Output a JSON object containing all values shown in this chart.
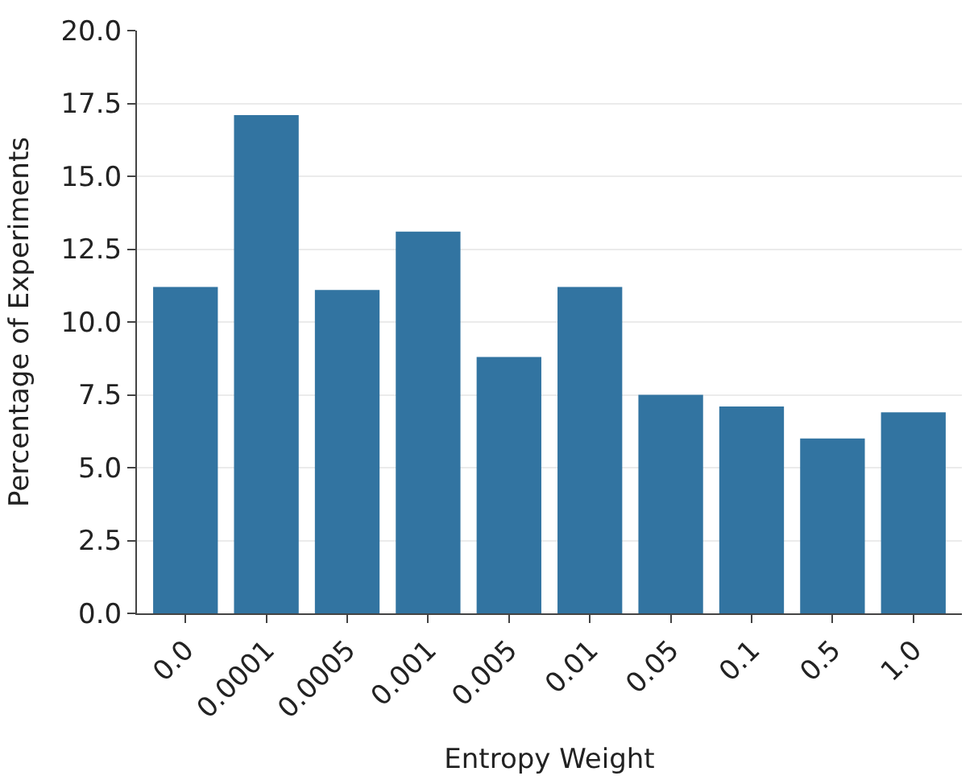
{
  "chart_data": {
    "type": "bar",
    "xlabel": "Entropy Weight",
    "ylabel": "Percentage of Experiments",
    "categories": [
      "0.0",
      "0.0001",
      "0.0005",
      "0.001",
      "0.005",
      "0.01",
      "0.05",
      "0.1",
      "0.5",
      "1.0"
    ],
    "values": [
      11.2,
      17.1,
      11.1,
      13.1,
      8.8,
      11.2,
      7.5,
      7.1,
      6.0,
      6.9
    ],
    "color": "#3274a1",
    "ylim": [
      0,
      20
    ],
    "yticks": [
      {
        "value": 0,
        "label": "0.0"
      },
      2.5,
      {
        "value": 5,
        "label": "5.0"
      },
      7.5,
      {
        "value": 10,
        "label": "10.0"
      },
      12.5,
      {
        "value": 15,
        "label": "15.0"
      },
      17.5,
      {
        "value": 20,
        "label": "20.0"
      }
    ],
    "grid": "y"
  }
}
